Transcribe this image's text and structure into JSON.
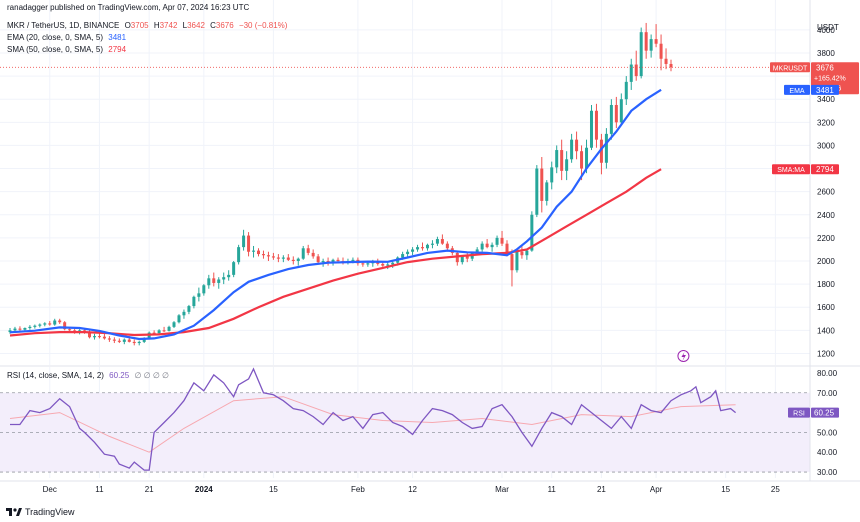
{
  "publisher": "ranadagger published on TradingView.com, Apr 07, 2024 16:23 UTC",
  "footer": "TradingView",
  "symbol_line": {
    "title": "MKR / TetherUS, 1D, BINANCE",
    "o_label": "O",
    "o": "3705",
    "h_label": "H",
    "h": "3742",
    "l_label": "L",
    "l": "3642",
    "c_label": "C",
    "c": "3676",
    "change": "−30 (−0.81%)"
  },
  "indicators": {
    "ema": {
      "label": "EMA (20, close, 0, SMA, 5)",
      "value": "3481"
    },
    "sma": {
      "label": "SMA (50, close, 0, SMA, 5)",
      "value": "2794"
    },
    "rsi": {
      "label": "RSI (14, close, SMA, 14, 2)",
      "value": "60.25",
      "extra": "∅ ∅ ∅ ∅"
    }
  },
  "price_tags": {
    "symbol": "MKRUSDT",
    "price": "3676",
    "pct": "+165.42%",
    "countdown": "07:36:26",
    "ema_label": "EMA",
    "ema_value": "3481",
    "sma_label": "SMA:MA",
    "sma_value": "2794",
    "rsi_label": "RSI",
    "rsi_value": "60.25",
    "currency": "USDT"
  },
  "colors": {
    "up": "#26a69a",
    "down": "#ef5350",
    "ema": "#2962ff",
    "sma": "#f23645",
    "rsi": "#7e57c2",
    "rsi_band": "#f3eefb",
    "grid": "#f0f3fa",
    "text": "#131722"
  },
  "chart_data": {
    "type": "candlestick",
    "price_axis": {
      "ticks": [
        1200,
        1400,
        1600,
        1800,
        2000,
        2200,
        2400,
        2600,
        2800,
        3000,
        3200,
        3400,
        3600,
        3800,
        4000
      ],
      "ylim": [
        1100,
        4120
      ]
    },
    "time_axis": {
      "ticks": [
        {
          "label": "Dec",
          "day": 8,
          "bold": false
        },
        {
          "label": "11",
          "day": 18,
          "bold": false
        },
        {
          "label": "21",
          "day": 28,
          "bold": false
        },
        {
          "label": "2024",
          "day": 39,
          "bold": true
        },
        {
          "label": "15",
          "day": 53,
          "bold": false
        },
        {
          "label": "Feb",
          "day": 70,
          "bold": false
        },
        {
          "label": "12",
          "day": 81,
          "bold": false
        },
        {
          "label": "Mar",
          "day": 99,
          "bold": false
        },
        {
          "label": "11",
          "day": 109,
          "bold": false
        },
        {
          "label": "21",
          "day": 119,
          "bold": false
        },
        {
          "label": "Apr",
          "day": 130,
          "bold": false
        },
        {
          "label": "15",
          "day": 144,
          "bold": false
        },
        {
          "label": "25",
          "day": 154,
          "bold": false
        }
      ]
    },
    "rsi_axis": {
      "ticks": [
        30.0,
        40.0,
        50.0,
        60.0,
        70.0,
        80.0
      ],
      "ylim": [
        27,
        83
      ],
      "band": [
        30,
        70
      ]
    },
    "candles": [
      [
        1385,
        1420,
        1370,
        1400
      ],
      [
        1400,
        1430,
        1385,
        1415
      ],
      [
        1415,
        1435,
        1395,
        1405
      ],
      [
        1405,
        1425,
        1390,
        1420
      ],
      [
        1420,
        1445,
        1405,
        1430
      ],
      [
        1430,
        1450,
        1415,
        1440
      ],
      [
        1440,
        1460,
        1425,
        1450
      ],
      [
        1450,
        1470,
        1435,
        1460
      ],
      [
        1460,
        1480,
        1440,
        1450
      ],
      [
        1450,
        1500,
        1440,
        1485
      ],
      [
        1485,
        1500,
        1455,
        1470
      ],
      [
        1470,
        1480,
        1400,
        1410
      ],
      [
        1410,
        1425,
        1380,
        1400
      ],
      [
        1400,
        1420,
        1370,
        1390
      ],
      [
        1390,
        1410,
        1365,
        1400
      ],
      [
        1400,
        1415,
        1370,
        1385
      ],
      [
        1385,
        1400,
        1330,
        1340
      ],
      [
        1340,
        1370,
        1320,
        1350
      ],
      [
        1350,
        1380,
        1330,
        1345
      ],
      [
        1345,
        1370,
        1320,
        1330
      ],
      [
        1330,
        1350,
        1300,
        1320
      ],
      [
        1320,
        1340,
        1290,
        1310
      ],
      [
        1310,
        1330,
        1290,
        1300
      ],
      [
        1300,
        1330,
        1280,
        1320
      ],
      [
        1320,
        1350,
        1295,
        1300
      ],
      [
        1300,
        1320,
        1270,
        1290
      ],
      [
        1290,
        1310,
        1270,
        1300
      ],
      [
        1300,
        1340,
        1290,
        1330
      ],
      [
        1330,
        1390,
        1320,
        1380
      ],
      [
        1380,
        1400,
        1360,
        1375
      ],
      [
        1375,
        1410,
        1360,
        1400
      ],
      [
        1400,
        1430,
        1385,
        1395
      ],
      [
        1395,
        1440,
        1390,
        1430
      ],
      [
        1430,
        1480,
        1420,
        1470
      ],
      [
        1470,
        1540,
        1460,
        1530
      ],
      [
        1530,
        1580,
        1500,
        1560
      ],
      [
        1560,
        1620,
        1540,
        1610
      ],
      [
        1610,
        1700,
        1590,
        1690
      ],
      [
        1690,
        1770,
        1650,
        1720
      ],
      [
        1720,
        1800,
        1700,
        1790
      ],
      [
        1790,
        1880,
        1760,
        1850
      ],
      [
        1850,
        1900,
        1780,
        1810
      ],
      [
        1810,
        1860,
        1760,
        1840
      ],
      [
        1840,
        1900,
        1800,
        1860
      ],
      [
        1860,
        1920,
        1830,
        1880
      ],
      [
        1880,
        2000,
        1860,
        1990
      ],
      [
        1990,
        2140,
        1970,
        2120
      ],
      [
        2120,
        2270,
        2090,
        2220
      ],
      [
        2220,
        2250,
        2040,
        2080
      ],
      [
        2080,
        2130,
        2030,
        2090
      ],
      [
        2090,
        2110,
        2040,
        2060
      ],
      [
        2060,
        2090,
        2020,
        2050
      ],
      [
        2050,
        2080,
        2000,
        2040
      ],
      [
        2040,
        2070,
        2010,
        2030
      ],
      [
        2030,
        2060,
        1990,
        2020
      ],
      [
        2020,
        2050,
        1990,
        2030
      ],
      [
        2030,
        2060,
        2000,
        2010
      ],
      [
        2010,
        2040,
        1970,
        2000
      ],
      [
        2000,
        2030,
        1960,
        2020
      ],
      [
        2020,
        2130,
        2010,
        2110
      ],
      [
        2110,
        2140,
        2050,
        2070
      ],
      [
        2070,
        2100,
        2020,
        2040
      ],
      [
        2040,
        2060,
        1970,
        1990
      ],
      [
        1990,
        2020,
        1950,
        2000
      ],
      [
        2000,
        2030,
        1960,
        1990
      ],
      [
        1990,
        2020,
        1960,
        2010
      ],
      [
        2010,
        2030,
        1980,
        2000
      ],
      [
        2000,
        2030,
        1970,
        1995
      ],
      [
        1995,
        2020,
        1970,
        2000
      ],
      [
        2000,
        2030,
        1980,
        2010
      ],
      [
        2010,
        2030,
        1960,
        1980
      ],
      [
        1980,
        2000,
        1950,
        1970
      ],
      [
        1970,
        2000,
        1950,
        1980
      ],
      [
        1980,
        2010,
        1950,
        1990
      ],
      [
        1990,
        2020,
        1960,
        1975
      ],
      [
        1975,
        2000,
        1950,
        1960
      ],
      [
        1960,
        1990,
        1930,
        1970
      ],
      [
        1970,
        2000,
        1940,
        1985
      ],
      [
        1985,
        2040,
        1960,
        2030
      ],
      [
        2030,
        2080,
        2010,
        2060
      ],
      [
        2060,
        2100,
        2030,
        2080
      ],
      [
        2080,
        2120,
        2050,
        2100
      ],
      [
        2100,
        2140,
        2080,
        2120
      ],
      [
        2120,
        2160,
        2090,
        2110
      ],
      [
        2110,
        2150,
        2090,
        2140
      ],
      [
        2140,
        2180,
        2110,
        2150
      ],
      [
        2150,
        2210,
        2130,
        2190
      ],
      [
        2190,
        2230,
        2140,
        2150
      ],
      [
        2150,
        2170,
        2090,
        2110
      ],
      [
        2110,
        2130,
        2050,
        2070
      ],
      [
        2070,
        2090,
        1960,
        1990
      ],
      [
        1990,
        2050,
        1970,
        2040
      ],
      [
        2040,
        2080,
        1990,
        2020
      ],
      [
        2020,
        2080,
        2000,
        2070
      ],
      [
        2070,
        2120,
        2050,
        2100
      ],
      [
        2100,
        2170,
        2080,
        2150
      ],
      [
        2150,
        2190,
        2110,
        2120
      ],
      [
        2120,
        2160,
        2080,
        2140
      ],
      [
        2140,
        2220,
        2120,
        2200
      ],
      [
        2200,
        2260,
        2130,
        2150
      ],
      [
        2150,
        2180,
        2040,
        2060
      ],
      [
        2060,
        2100,
        1780,
        1920
      ],
      [
        1920,
        2100,
        1900,
        2080
      ],
      [
        2080,
        2140,
        2020,
        2050
      ],
      [
        2050,
        2100,
        2010,
        2090
      ],
      [
        2090,
        2430,
        2080,
        2400
      ],
      [
        2400,
        2830,
        2380,
        2800
      ],
      [
        2800,
        2900,
        2420,
        2520
      ],
      [
        2520,
        2700,
        2480,
        2680
      ],
      [
        2680,
        2860,
        2620,
        2810
      ],
      [
        2810,
        3000,
        2760,
        2960
      ],
      [
        2960,
        3050,
        2700,
        2780
      ],
      [
        2780,
        2950,
        2700,
        2880
      ],
      [
        2880,
        3100,
        2850,
        3050
      ],
      [
        3050,
        3120,
        2880,
        2950
      ],
      [
        2950,
        3000,
        2700,
        2800
      ],
      [
        2800,
        3050,
        2760,
        2980
      ],
      [
        2980,
        3350,
        2960,
        3300
      ],
      [
        3300,
        3360,
        2980,
        3050
      ],
      [
        3050,
        3100,
        2750,
        2850
      ],
      [
        2850,
        3150,
        2800,
        3100
      ],
      [
        3100,
        3400,
        3050,
        3350
      ],
      [
        3350,
        3420,
        3150,
        3200
      ],
      [
        3200,
        3450,
        3180,
        3400
      ],
      [
        3400,
        3600,
        3350,
        3550
      ],
      [
        3550,
        3750,
        3480,
        3700
      ],
      [
        3700,
        3820,
        3560,
        3600
      ],
      [
        3600,
        4020,
        3580,
        3980
      ],
      [
        3980,
        4060,
        3750,
        3820
      ],
      [
        3820,
        3960,
        3760,
        3920
      ],
      [
        3920,
        4050,
        3850,
        3880
      ],
      [
        3880,
        3960,
        3650,
        3750
      ],
      [
        3750,
        3840,
        3660,
        3705
      ],
      [
        3705,
        3742,
        3642,
        3676
      ]
    ],
    "ema20": [
      [
        0,
        1383
      ],
      [
        5,
        1397
      ],
      [
        10,
        1425
      ],
      [
        14,
        1420
      ],
      [
        18,
        1395
      ],
      [
        22,
        1355
      ],
      [
        26,
        1325
      ],
      [
        29,
        1330
      ],
      [
        33,
        1365
      ],
      [
        37,
        1440
      ],
      [
        41,
        1575
      ],
      [
        45,
        1730
      ],
      [
        48,
        1820
      ],
      [
        52,
        1880
      ],
      [
        56,
        1930
      ],
      [
        60,
        1965
      ],
      [
        64,
        1985
      ],
      [
        68,
        1990
      ],
      [
        72,
        1995
      ],
      [
        76,
        1993
      ],
      [
        80,
        2030
      ],
      [
        84,
        2070
      ],
      [
        88,
        2090
      ],
      [
        92,
        2075
      ],
      [
        96,
        2070
      ],
      [
        100,
        2050
      ],
      [
        102,
        2100
      ],
      [
        104,
        2170
      ],
      [
        107,
        2290
      ],
      [
        110,
        2470
      ],
      [
        113,
        2600
      ],
      [
        116,
        2800
      ],
      [
        119,
        2970
      ],
      [
        122,
        3120
      ],
      [
        125,
        3300
      ],
      [
        128,
        3400
      ],
      [
        131,
        3481
      ]
    ],
    "sma50": [
      [
        0,
        1355
      ],
      [
        5,
        1375
      ],
      [
        10,
        1385
      ],
      [
        15,
        1385
      ],
      [
        20,
        1375
      ],
      [
        25,
        1360
      ],
      [
        30,
        1365
      ],
      [
        35,
        1385
      ],
      [
        40,
        1420
      ],
      [
        45,
        1500
      ],
      [
        50,
        1600
      ],
      [
        55,
        1690
      ],
      [
        60,
        1760
      ],
      [
        65,
        1830
      ],
      [
        70,
        1890
      ],
      [
        75,
        1940
      ],
      [
        80,
        1990
      ],
      [
        85,
        2020
      ],
      [
        90,
        2040
      ],
      [
        95,
        2060
      ],
      [
        100,
        2070
      ],
      [
        104,
        2100
      ],
      [
        108,
        2200
      ],
      [
        112,
        2300
      ],
      [
        116,
        2400
      ],
      [
        120,
        2500
      ],
      [
        124,
        2600
      ],
      [
        128,
        2720
      ],
      [
        131,
        2794
      ]
    ],
    "rsi": [
      [
        0,
        54
      ],
      [
        2,
        54
      ],
      [
        4,
        61
      ],
      [
        6,
        60
      ],
      [
        8,
        62
      ],
      [
        10,
        67
      ],
      [
        12,
        63
      ],
      [
        14,
        52
      ],
      [
        15,
        50
      ],
      [
        17,
        45
      ],
      [
        19,
        39
      ],
      [
        21,
        38
      ],
      [
        22,
        34
      ],
      [
        24,
        32
      ],
      [
        25,
        35
      ],
      [
        27,
        31
      ],
      [
        28,
        31
      ],
      [
        29,
        50
      ],
      [
        31,
        55
      ],
      [
        33,
        60
      ],
      [
        35,
        66
      ],
      [
        37,
        75
      ],
      [
        39,
        71
      ],
      [
        41,
        79
      ],
      [
        43,
        75
      ],
      [
        45,
        68
      ],
      [
        46,
        74
      ],
      [
        48,
        77
      ],
      [
        49,
        82
      ],
      [
        51,
        70
      ],
      [
        53,
        69
      ],
      [
        55,
        66
      ],
      [
        57,
        62
      ],
      [
        59,
        61
      ],
      [
        61,
        58
      ],
      [
        63,
        54
      ],
      [
        65,
        60
      ],
      [
        67,
        56
      ],
      [
        69,
        58
      ],
      [
        71,
        52
      ],
      [
        73,
        59
      ],
      [
        75,
        60
      ],
      [
        77,
        55
      ],
      [
        79,
        53
      ],
      [
        81,
        49
      ],
      [
        83,
        56
      ],
      [
        85,
        62
      ],
      [
        87,
        61
      ],
      [
        89,
        59
      ],
      [
        91,
        55
      ],
      [
        93,
        52
      ],
      [
        95,
        53
      ],
      [
        97,
        62
      ],
      [
        99,
        64
      ],
      [
        101,
        58
      ],
      [
        103,
        50
      ],
      [
        105,
        43
      ],
      [
        107,
        52
      ],
      [
        109,
        60
      ],
      [
        111,
        58
      ],
      [
        113,
        54
      ],
      [
        115,
        64
      ],
      [
        117,
        60
      ],
      [
        119,
        56
      ],
      [
        121,
        52
      ],
      [
        123,
        58
      ],
      [
        125,
        52
      ],
      [
        127,
        64
      ],
      [
        129,
        61
      ],
      [
        131,
        60
      ],
      [
        133,
        66
      ],
      [
        135,
        69
      ],
      [
        137,
        71
      ],
      [
        138,
        73
      ],
      [
        139,
        65
      ],
      [
        141,
        68
      ],
      [
        142,
        71
      ],
      [
        143,
        61
      ],
      [
        145,
        62
      ],
      [
        146,
        60
      ]
    ],
    "rsi_ma": [
      [
        0,
        57
      ],
      [
        10,
        60
      ],
      [
        20,
        48
      ],
      [
        28,
        40
      ],
      [
        35,
        52
      ],
      [
        45,
        66
      ],
      [
        55,
        68
      ],
      [
        65,
        59
      ],
      [
        75,
        56
      ],
      [
        85,
        55
      ],
      [
        95,
        57
      ],
      [
        105,
        54
      ],
      [
        115,
        59
      ],
      [
        125,
        58
      ],
      [
        135,
        63
      ],
      [
        146,
        64
      ]
    ]
  }
}
